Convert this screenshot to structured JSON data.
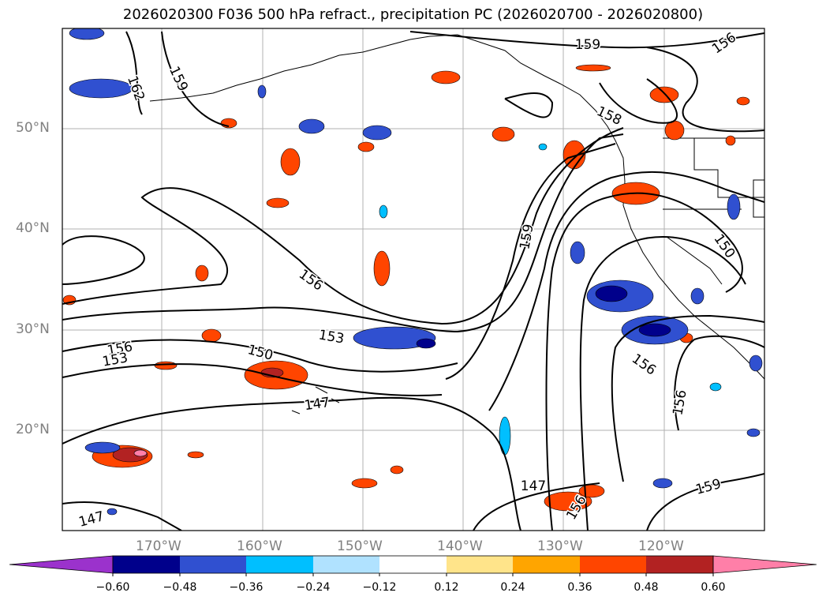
{
  "title": "2026020300 F036 500 hPa refract., precipitation PC (2026020700 - 2026020800)",
  "latitude_labels": [
    "50°N",
    "40°N",
    "30°N",
    "20°N"
  ],
  "longitude_labels": [
    "170°W",
    "160°W",
    "150°W",
    "140°W",
    "130°W",
    "120°W"
  ],
  "contour_labels": [
    "159",
    "156",
    "162",
    "159",
    "158",
    "159",
    "150",
    "156",
    "153",
    "156",
    "153",
    "150",
    "147",
    "147",
    "147",
    "156",
    "156",
    "159",
    "156",
    "153"
  ],
  "colorbar": {
    "ticks": [
      "−0.60",
      "−0.48",
      "−0.36",
      "−0.24",
      "−0.12",
      "0.12",
      "0.24",
      "0.36",
      "0.48",
      "0.60"
    ],
    "colors": [
      "#9b32cc",
      "#00008b",
      "#3050d0",
      "#00bfff",
      "#b0e2ff",
      "#ffffff",
      "#ffe48a",
      "#ffa500",
      "#ff4500",
      "#b22222",
      "#ff7fa8"
    ]
  }
}
